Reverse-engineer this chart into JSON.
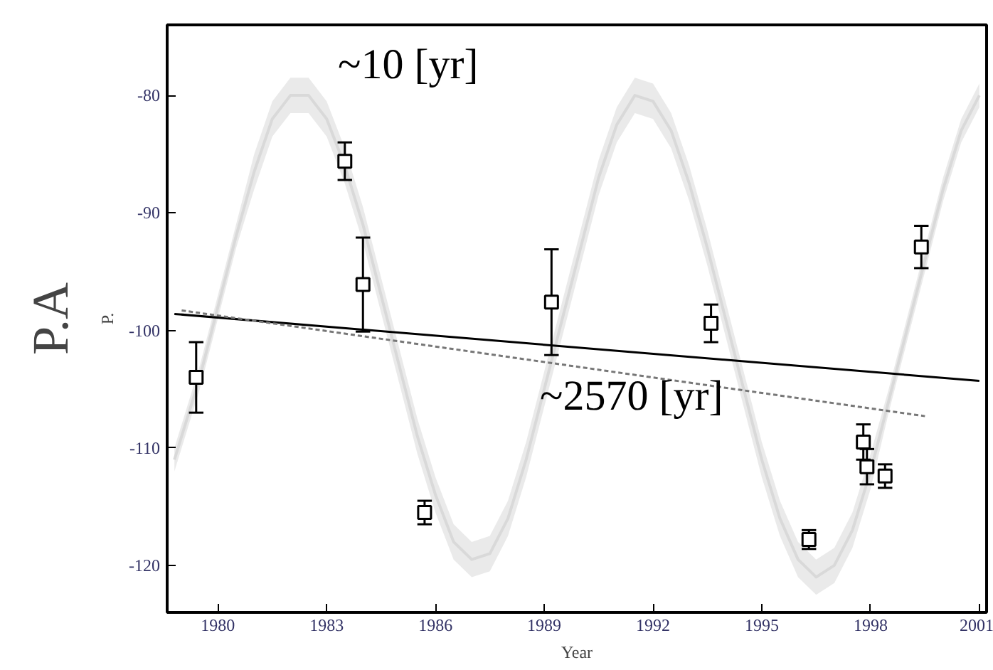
{
  "chart_data": {
    "type": "scatter",
    "xlabel": "Year",
    "ylabel": "P.",
    "xlim": [
      1978.6,
      2001.2
    ],
    "ylim": [
      -124,
      -74
    ],
    "xticks": [
      1980,
      1983,
      1986,
      1989,
      1992,
      1995,
      1998,
      2001
    ],
    "yticks": [
      -80,
      -90,
      -100,
      -110,
      -120
    ],
    "grid": false,
    "annotations": [
      "P.A",
      "~10 [yr]",
      "~2570 [yr]"
    ],
    "series": [
      {
        "type": "line",
        "color": "#d9d9d9",
        "x": [
          1978.8,
          1979.5,
          1980.0,
          1980.5,
          1981.0,
          1981.5,
          1982.0,
          1982.5,
          1983.0,
          1983.5,
          1984.0,
          1984.5,
          1985.0,
          1985.5,
          1986.0,
          1986.5,
          1987.0,
          1987.5,
          1988.0,
          1988.5,
          1989.0,
          1989.5,
          1990.0,
          1990.5,
          1991.0,
          1991.5,
          1992.0,
          1992.5,
          1993.0,
          1993.5,
          1994.0,
          1994.5,
          1995.0,
          1995.5,
          1996.0,
          1996.5,
          1997.0,
          1997.5,
          1998.0,
          1998.5,
          1999.0,
          1999.5,
          2000.0,
          2000.5,
          2001.0
        ],
        "values": [
          -111,
          -104,
          -98,
          -92,
          -86.5,
          -82,
          -80,
          -80,
          -82,
          -86,
          -91,
          -97,
          -103,
          -109,
          -114,
          -118,
          -119.5,
          -119,
          -116,
          -111,
          -105,
          -99,
          -93,
          -87,
          -82.5,
          -80,
          -80.5,
          -83,
          -87.5,
          -93,
          -99,
          -105,
          -111,
          -116,
          -119.5,
          -121,
          -120,
          -117,
          -112,
          -106,
          -100,
          -94,
          -88,
          -83,
          -80
        ],
        "lower": [
          -112,
          -105,
          -99,
          -93,
          -88,
          -83.5,
          -81.5,
          -81.5,
          -83.5,
          -87.5,
          -92.5,
          -98.5,
          -104.5,
          -110.5,
          -115.5,
          -119.5,
          -121,
          -120.5,
          -117.5,
          -112.5,
          -106.5,
          -100.5,
          -94.5,
          -88.5,
          -84,
          -81.5,
          -82,
          -84.5,
          -89,
          -94.5,
          -100.5,
          -106.5,
          -112.5,
          -117.5,
          -121,
          -122.5,
          -121.5,
          -118.5,
          -113.5,
          -107,
          -101,
          -95,
          -89,
          -84,
          -81
        ],
        "upper": [
          -110,
          -103,
          -97,
          -91,
          -85,
          -80.5,
          -78.5,
          -78.5,
          -80.5,
          -84.5,
          -89.5,
          -95.5,
          -101.5,
          -107.5,
          -112.5,
          -116.5,
          -118,
          -117.5,
          -114.5,
          -109.5,
          -103.5,
          -97.5,
          -91.5,
          -85.5,
          -81,
          -78.5,
          -79,
          -81.5,
          -86,
          -91.5,
          -97.5,
          -103.5,
          -109.5,
          -114.5,
          -118,
          -119.5,
          -118.5,
          -115.5,
          -110.5,
          -105,
          -99,
          -93,
          -87,
          -82,
          -79
        ]
      },
      {
        "type": "line",
        "color": "#000000",
        "line_style": "solid",
        "x": [
          1978.8,
          2001.0
        ],
        "values": [
          -98.6,
          -104.3
        ]
      },
      {
        "type": "line",
        "color": "#777777",
        "line_style": "dotted",
        "x": [
          1979.0,
          1999.5
        ],
        "values": [
          -98.3,
          -107.3
        ]
      },
      {
        "marker": "square",
        "color": "#000000",
        "x": [
          1979.4,
          1983.5,
          1984.0,
          1985.7,
          1989.2,
          1993.6,
          1996.3,
          1997.8,
          1997.9,
          1998.4,
          1999.4
        ],
        "values": [
          -104.0,
          -85.6,
          -96.1,
          -115.5,
          -97.6,
          -99.4,
          -117.8,
          -109.5,
          -111.6,
          -112.4,
          -92.9
        ],
        "errors": [
          3,
          1.6,
          4,
          1,
          4.5,
          1.6,
          0.8,
          1.5,
          1.5,
          1,
          1.8
        ]
      }
    ]
  }
}
